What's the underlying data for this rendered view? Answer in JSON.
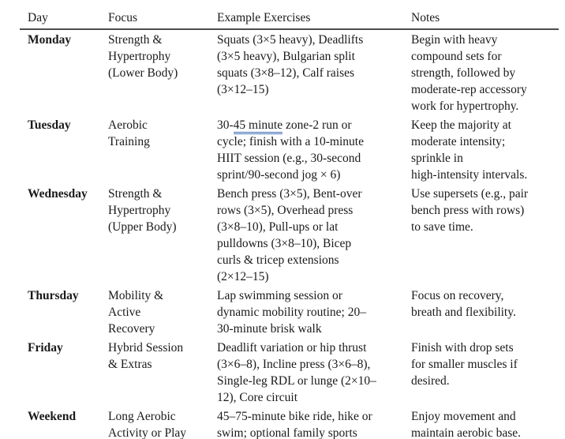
{
  "colors": {
    "text": "#1a1a1a",
    "header_rule": "#4d4d4d",
    "grammar_underline": "#3f6db5"
  },
  "table": {
    "headers": [
      "Day",
      "Focus",
      "Example Exercises",
      "Notes"
    ],
    "rows": [
      {
        "day": "Monday",
        "focus": "Strength &\nHypertrophy\n(Lower Body)",
        "exercises": [
          {
            "text": "Squats (3×5 heavy), Deadlifts\n(3×5 heavy), Bulgarian split\nsquats (3×8–12), Calf raises\n(3×12–15)"
          }
        ],
        "notes": "Begin with heavy\ncompound sets for\nstrength, followed by\nmoderate-rep accessory\nwork for hypertrophy."
      },
      {
        "day": "Tuesday",
        "focus": "Aerobic\nTraining",
        "exercises": [
          {
            "text": "30-"
          },
          {
            "text": "45 minute",
            "underline": true
          },
          {
            "text": " zone-2 run or\ncycle; finish with a 10-minute\nHIIT session (e.g., 30-second\nsprint/90-second jog × 6)"
          }
        ],
        "notes": "Keep the majority at\nmoderate intensity;\nsprinkle in\nhigh-intensity intervals."
      },
      {
        "day": "Wednesday",
        "focus": "Strength &\nHypertrophy\n(Upper Body)",
        "exercises": [
          {
            "text": "Bench press (3×5), Bent-over\nrows (3×5), Overhead press\n(3×8–10), Pull-ups or lat\npulldowns (3×8–10), Bicep\ncurls & tricep extensions\n(2×12–15)"
          }
        ],
        "notes": "Use supersets (e.g., pair\nbench press with rows)\nto save time."
      },
      {
        "day": "Thursday",
        "focus": "Mobility &\nActive\nRecovery",
        "exercises": [
          {
            "text": "Lap swimming session or\ndynamic mobility routine; 20–\n30-minute brisk walk"
          }
        ],
        "notes": "Focus on recovery,\nbreath and flexibility."
      },
      {
        "day": "Friday",
        "focus": "Hybrid Session\n& Extras",
        "exercises": [
          {
            "text": "Deadlift variation or hip thrust\n(3×6–8), Incline press (3×6–8),\nSingle-leg RDL or lunge (2×10–\n12), Core circuit"
          }
        ],
        "notes": "Finish with drop sets\nfor smaller muscles if\ndesired."
      },
      {
        "day": "Weekend",
        "focus": "Long Aerobic\nActivity or Play",
        "exercises": [
          {
            "text": "45–75-minute bike ride, hike or\nswim; optional family sports"
          }
        ],
        "notes": "Enjoy movement and\nmaintain aerobic base."
      }
    ]
  }
}
